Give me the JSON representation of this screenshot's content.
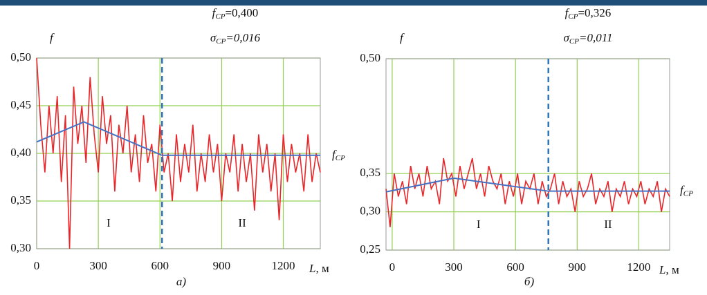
{
  "charts": [
    {
      "chart_data": {
        "type": "line",
        "y_label": "f",
        "x_label": {
          "symbol": "L",
          "text": ", м"
        },
        "caption": "а)",
        "annotations": [
          {
            "symbol": "f",
            "sub": "CP",
            "text": "=0,400"
          },
          {
            "symbol": "σ",
            "sub": "CP",
            "text": "=0,016"
          }
        ],
        "level_label": {
          "symbol": "f",
          "sub": "CP"
        },
        "regions": [
          {
            "label": "I",
            "x": 350
          },
          {
            "label": "II",
            "x": 1000
          }
        ],
        "divider_x": 610,
        "xlim": [
          0,
          1380
        ],
        "xticks": [
          0,
          300,
          600,
          900,
          1200
        ],
        "ylim": [
          0.3,
          0.5
        ],
        "yticks": [
          {
            "value": 0.3,
            "label": "0,30"
          },
          {
            "value": 0.35,
            "label": "0,35"
          },
          {
            "value": 0.4,
            "label": "0,40"
          },
          {
            "value": 0.45,
            "label": "0,45"
          },
          {
            "value": 0.5,
            "label": "0,50"
          }
        ],
        "grid": true,
        "signal": {
          "color": "#e8262a",
          "x": [
            0,
            20,
            40,
            60,
            80,
            100,
            120,
            140,
            160,
            180,
            200,
            220,
            240,
            260,
            280,
            300,
            320,
            340,
            360,
            380,
            400,
            420,
            440,
            460,
            480,
            500,
            520,
            540,
            560,
            580,
            600,
            620,
            640,
            660,
            680,
            700,
            720,
            740,
            760,
            780,
            800,
            820,
            840,
            860,
            880,
            900,
            920,
            940,
            960,
            980,
            1000,
            1020,
            1040,
            1060,
            1080,
            1100,
            1120,
            1140,
            1160,
            1180,
            1200,
            1220,
            1240,
            1260,
            1280,
            1300,
            1320,
            1340,
            1360,
            1380
          ],
          "values": [
            0.5,
            0.43,
            0.38,
            0.45,
            0.4,
            0.46,
            0.37,
            0.44,
            0.3,
            0.47,
            0.41,
            0.45,
            0.39,
            0.48,
            0.42,
            0.38,
            0.46,
            0.41,
            0.44,
            0.36,
            0.43,
            0.4,
            0.45,
            0.38,
            0.42,
            0.37,
            0.44,
            0.39,
            0.41,
            0.36,
            0.43,
            0.38,
            0.4,
            0.35,
            0.42,
            0.37,
            0.41,
            0.38,
            0.43,
            0.36,
            0.4,
            0.37,
            0.42,
            0.38,
            0.41,
            0.35,
            0.4,
            0.38,
            0.42,
            0.36,
            0.41,
            0.37,
            0.4,
            0.34,
            0.42,
            0.38,
            0.41,
            0.36,
            0.4,
            0.33,
            0.42,
            0.37,
            0.41,
            0.38,
            0.4,
            0.36,
            0.42,
            0.37,
            0.4,
            0.38
          ]
        },
        "trend": {
          "color": "#4472c4",
          "x": [
            0,
            230,
            610,
            1380
          ],
          "values": [
            0.412,
            0.433,
            0.398,
            0.398
          ]
        }
      }
    },
    {
      "chart_data": {
        "type": "line",
        "y_label": "f",
        "x_label": {
          "symbol": "L",
          "text": ", м"
        },
        "caption": "б)",
        "annotations": [
          {
            "symbol": "f",
            "sub": "CP",
            "text": "=0,326"
          },
          {
            "symbol": "σ",
            "sub": "CP",
            "text": "=0,011"
          }
        ],
        "level_label": {
          "symbol": "f",
          "sub": "CP"
        },
        "regions": [
          {
            "label": "I",
            "x": 420
          },
          {
            "label": "II",
            "x": 1050
          }
        ],
        "divider_x": 760,
        "xlim": [
          -30,
          1350
        ],
        "xticks": [
          0,
          300,
          600,
          900,
          1200
        ],
        "ylim": [
          0.25,
          0.5
        ],
        "yticks": [
          {
            "value": 0.25,
            "label": "0,25"
          },
          {
            "value": 0.3,
            "label": "0,30"
          },
          {
            "value": 0.35,
            "label": "0,35"
          },
          {
            "value": 0.5,
            "label": "0,50"
          }
        ],
        "grid": true,
        "signal": {
          "color": "#e8262a",
          "x": [
            -30,
            -10,
            10,
            30,
            50,
            70,
            90,
            110,
            130,
            150,
            170,
            190,
            210,
            230,
            250,
            270,
            290,
            310,
            330,
            350,
            370,
            390,
            410,
            430,
            450,
            470,
            490,
            510,
            530,
            550,
            570,
            590,
            610,
            630,
            650,
            670,
            690,
            710,
            730,
            750,
            770,
            790,
            810,
            830,
            850,
            870,
            890,
            910,
            930,
            950,
            970,
            990,
            1010,
            1030,
            1050,
            1070,
            1090,
            1110,
            1130,
            1150,
            1170,
            1190,
            1210,
            1230,
            1250,
            1270,
            1290,
            1310,
            1330,
            1350
          ],
          "values": [
            0.33,
            0.28,
            0.35,
            0.32,
            0.34,
            0.31,
            0.36,
            0.33,
            0.35,
            0.32,
            0.36,
            0.33,
            0.34,
            0.31,
            0.37,
            0.34,
            0.35,
            0.32,
            0.36,
            0.33,
            0.35,
            0.37,
            0.33,
            0.35,
            0.32,
            0.36,
            0.34,
            0.33,
            0.35,
            0.31,
            0.34,
            0.32,
            0.35,
            0.31,
            0.34,
            0.33,
            0.35,
            0.31,
            0.34,
            0.32,
            0.33,
            0.35,
            0.31,
            0.34,
            0.32,
            0.33,
            0.3,
            0.34,
            0.32,
            0.33,
            0.35,
            0.31,
            0.33,
            0.32,
            0.34,
            0.3,
            0.33,
            0.32,
            0.34,
            0.31,
            0.33,
            0.32,
            0.34,
            0.31,
            0.33,
            0.32,
            0.34,
            0.3,
            0.33,
            0.32
          ]
        },
        "trend": {
          "color": "#4472c4",
          "x": [
            -30,
            300,
            760,
            1350
          ],
          "values": [
            0.326,
            0.344,
            0.327,
            0.327
          ]
        }
      }
    }
  ]
}
